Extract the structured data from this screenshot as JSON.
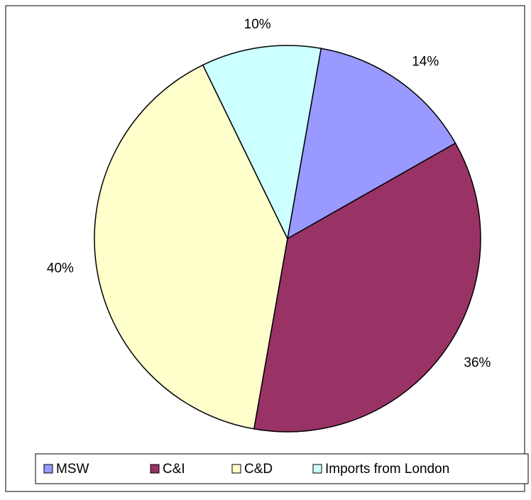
{
  "chart_data": {
    "type": "pie",
    "categories": [
      "MSW",
      "C&I",
      "C&D",
      "Imports from London"
    ],
    "values": [
      14,
      36,
      40,
      10
    ],
    "value_labels": [
      "14%",
      "36%",
      "40%",
      "10%"
    ],
    "colors": [
      "#9999ff",
      "#993366",
      "#ffffcc",
      "#ccffff"
    ],
    "legend": "bottom"
  }
}
